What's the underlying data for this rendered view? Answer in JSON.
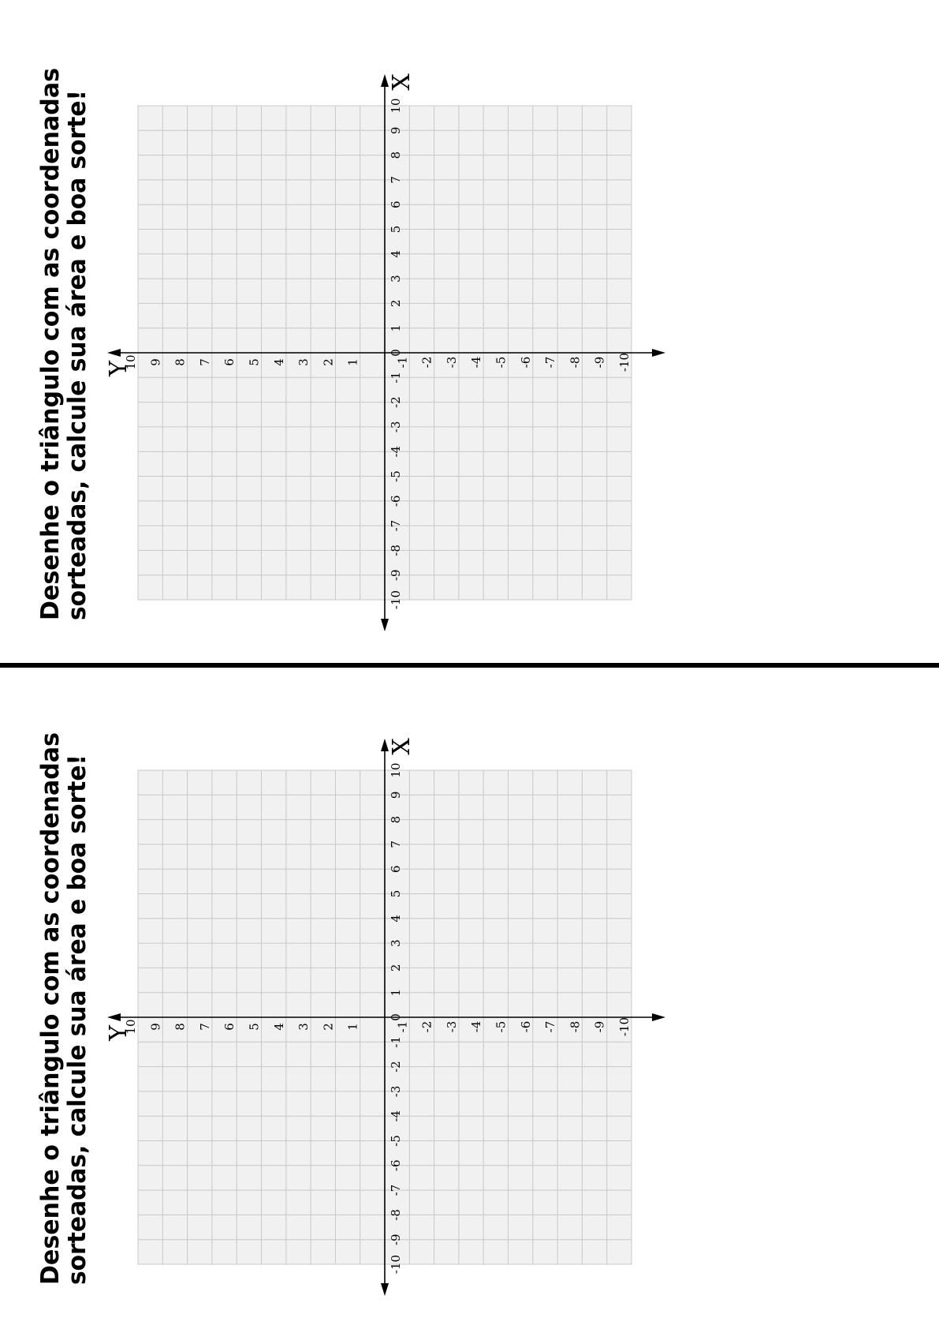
{
  "worksheet": {
    "instruction_line1": "Desenhe o triângulo com as coordenadas",
    "instruction_line2": "sorteadas, calcule sua área e boa sorte!",
    "x_axis_label": "X",
    "y_axis_label": "Y",
    "x_ticks": [
      "-10",
      "-9",
      "-8",
      "-7",
      "-6",
      "-5",
      "-4",
      "-3",
      "-2",
      "-1",
      "0",
      "1",
      "2",
      "3",
      "4",
      "5",
      "6",
      "7",
      "8",
      "9",
      "10"
    ],
    "y_ticks": [
      "-10",
      "-9",
      "-8",
      "-7",
      "-6",
      "-5",
      "-4",
      "-3",
      "-2",
      "-1",
      "1",
      "2",
      "3",
      "4",
      "5",
      "6",
      "7",
      "8",
      "9",
      "10"
    ],
    "x_range": [
      -10,
      10
    ],
    "y_range": [
      -10,
      10
    ],
    "grid_on": true,
    "grid_fill": "#f1f1f1",
    "grid_line_color": "#c8c8c8",
    "axis_color": "#000000"
  },
  "panels": [
    {
      "id": "top"
    },
    {
      "id": "bottom"
    }
  ]
}
